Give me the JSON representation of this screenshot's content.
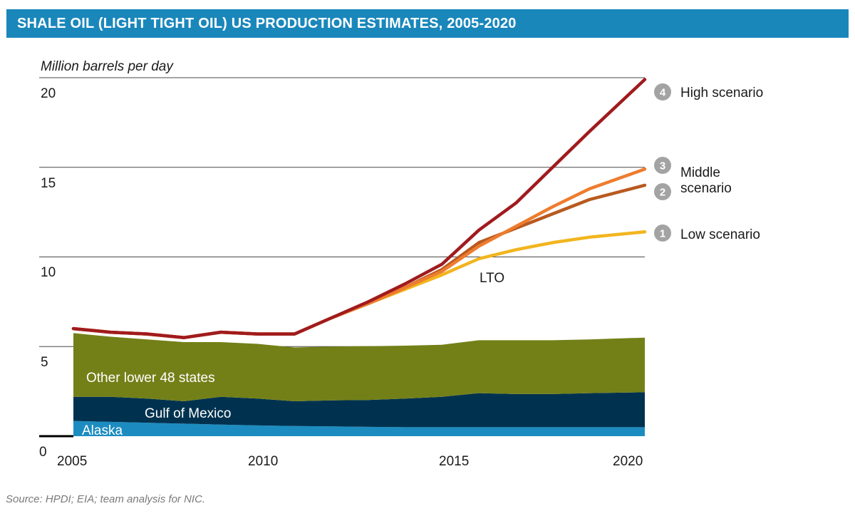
{
  "header": {
    "title": "SHALE OIL (LIGHT TIGHT OIL) US PRODUCTION ESTIMATES, 2005-2020"
  },
  "footer": {
    "source": "Source: HPDI; EIA; team analysis for NIC."
  },
  "chart_data": {
    "type": "area",
    "title": "SHALE OIL (LIGHT TIGHT OIL) US PRODUCTION ESTIMATES, 2005-2020",
    "ylabel": "Million barrels per day",
    "xlim": [
      2005,
      2020.5
    ],
    "ylim": [
      0,
      20
    ],
    "x_ticks": [
      "2005",
      "2010",
      "2015",
      "2020"
    ],
    "y_ticks": [
      "0",
      "5",
      "10",
      "15",
      "20"
    ],
    "stacked_areas": [
      {
        "name": "Alaska",
        "color": "#1c8cc0",
        "x": [
          2005,
          2006,
          2007,
          2008,
          2009,
          2010,
          2011,
          2012,
          2013,
          2014,
          2015,
          2016,
          2017,
          2018,
          2019,
          2020.5
        ],
        "values": [
          0.85,
          0.8,
          0.75,
          0.7,
          0.65,
          0.6,
          0.57,
          0.55,
          0.52,
          0.5,
          0.5,
          0.5,
          0.5,
          0.5,
          0.5,
          0.5
        ]
      },
      {
        "name": "Gulf of Mexico",
        "color": "#00324f",
        "x": [
          2005,
          2006,
          2007,
          2008,
          2009,
          2010,
          2011,
          2012,
          2013,
          2014,
          2015,
          2016,
          2017,
          2018,
          2019,
          2020.5
        ],
        "values": [
          1.35,
          1.4,
          1.35,
          1.25,
          1.55,
          1.5,
          1.38,
          1.45,
          1.5,
          1.6,
          1.7,
          1.9,
          1.85,
          1.85,
          1.9,
          1.95
        ]
      },
      {
        "name": "Other lower 48 states",
        "color": "#738018",
        "x": [
          2005,
          2006,
          2007,
          2008,
          2009,
          2010,
          2011,
          2012,
          2013,
          2014,
          2015,
          2016,
          2017,
          2018,
          2019,
          2020.5
        ],
        "values": [
          3.55,
          3.35,
          3.3,
          3.3,
          3.05,
          3.05,
          3.0,
          3.0,
          3.0,
          2.95,
          2.9,
          2.95,
          3.0,
          3.0,
          3.0,
          3.05
        ]
      }
    ],
    "series": [
      {
        "name": "High scenario",
        "number": "4",
        "color": "#a01b1e",
        "x": [
          2005,
          2006,
          2007,
          2008,
          2009,
          2010,
          2011,
          2012,
          2013,
          2014,
          2015,
          2016,
          2017,
          2018,
          2019,
          2020.5
        ],
        "values": [
          6.0,
          5.8,
          5.7,
          5.5,
          5.8,
          5.7,
          5.7,
          6.6,
          7.5,
          8.5,
          9.6,
          11.5,
          13.0,
          15.0,
          17.0,
          19.9
        ]
      },
      {
        "name": "Middle scenario",
        "number": "3",
        "color": "#ee7c2e",
        "x": [
          2005,
          2006,
          2007,
          2008,
          2009,
          2010,
          2011,
          2012,
          2013,
          2014,
          2015,
          2016,
          2017,
          2018,
          2019,
          2020.5
        ],
        "values": [
          6.0,
          5.8,
          5.7,
          5.5,
          5.8,
          5.7,
          5.7,
          6.6,
          7.4,
          8.3,
          9.2,
          10.6,
          11.7,
          12.8,
          13.8,
          14.9
        ]
      },
      {
        "name": "Middle scenario",
        "number": "2",
        "color": "#b85a1f",
        "x": [
          2005,
          2006,
          2007,
          2008,
          2009,
          2010,
          2011,
          2012,
          2013,
          2014,
          2015,
          2016,
          2017,
          2018,
          2019,
          2020.5
        ],
        "values": [
          6.0,
          5.8,
          5.7,
          5.5,
          5.8,
          5.7,
          5.7,
          6.6,
          7.4,
          8.3,
          9.3,
          10.8,
          11.6,
          12.4,
          13.2,
          14.0
        ]
      },
      {
        "name": "Low scenario",
        "number": "1",
        "color": "#f2b51f",
        "x": [
          2005,
          2006,
          2007,
          2008,
          2009,
          2010,
          2011,
          2012,
          2013,
          2014,
          2015,
          2016,
          2017,
          2018,
          2019,
          2020.5
        ],
        "values": [
          6.0,
          5.8,
          5.7,
          5.5,
          5.8,
          5.7,
          5.7,
          6.6,
          7.4,
          8.2,
          9.0,
          9.9,
          10.4,
          10.8,
          11.1,
          11.4
        ]
      }
    ],
    "legend": {
      "high_label": "High scenario",
      "middle_label_line1": "Middle",
      "middle_label_line2": "scenario",
      "low_label": "Low scenario"
    },
    "annotations": {
      "lto": "LTO"
    }
  }
}
